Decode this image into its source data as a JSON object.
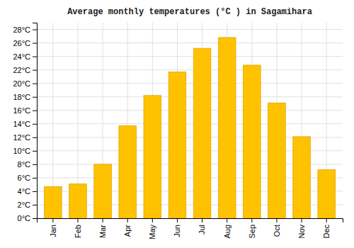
{
  "chart_data": {
    "type": "bar",
    "title": "Average monthly temperatures (°C ) in Sagamihara",
    "categories": [
      "Jan",
      "Feb",
      "Mar",
      "Apr",
      "May",
      "Jun",
      "Jul",
      "Aug",
      "Sep",
      "Oct",
      "Nov",
      "Dec"
    ],
    "values": [
      4.7,
      5.1,
      8.0,
      13.7,
      18.2,
      21.7,
      25.2,
      26.8,
      22.7,
      17.1,
      12.1,
      7.2
    ],
    "color": "#FFC200",
    "ylim": [
      0,
      29
    ],
    "yticks": [
      {
        "value": 0,
        "label": "0°C"
      },
      {
        "value": 2,
        "label": "2°C"
      },
      {
        "value": 4,
        "label": "4°C"
      },
      {
        "value": 6,
        "label": "6°C"
      },
      {
        "value": 8,
        "label": "8°C"
      },
      {
        "value": 10,
        "label": "10°C"
      },
      {
        "value": 12,
        "label": "12°C"
      },
      {
        "value": 14,
        "label": "14°C"
      },
      {
        "value": 16,
        "label": "16°C"
      },
      {
        "value": 18,
        "label": "18°C"
      },
      {
        "value": 20,
        "label": "20°C"
      },
      {
        "value": 22,
        "label": "22°C"
      },
      {
        "value": 24,
        "label": "24°C"
      },
      {
        "value": 26,
        "label": "26°C"
      },
      {
        "value": 28,
        "label": "28°C"
      }
    ],
    "grid": true
  }
}
